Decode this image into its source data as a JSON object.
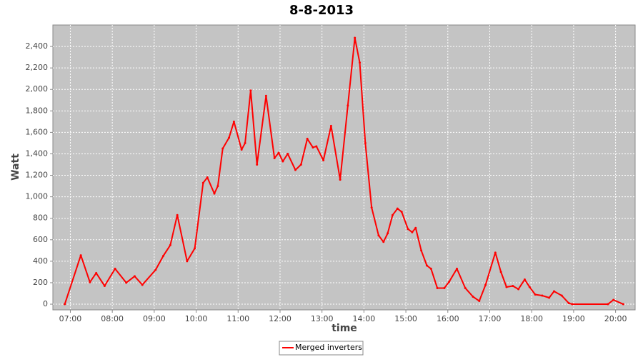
{
  "chart_data": {
    "type": "line",
    "title": "8-8-2013",
    "x_label": "time",
    "y_label": "Watt",
    "x": [
      "06:52",
      "07:15",
      "07:28",
      "07:37",
      "07:49",
      "08:04",
      "08:20",
      "08:32",
      "08:43",
      "09:02",
      "09:13",
      "09:23",
      "09:33",
      "09:47",
      "09:58",
      "10:10",
      "10:16",
      "10:26",
      "10:31",
      "10:38",
      "10:47",
      "10:54",
      "11:05",
      "11:10",
      "11:18",
      "11:27",
      "11:40",
      "11:52",
      "11:58",
      "12:04",
      "12:11",
      "12:22",
      "12:30",
      "12:39",
      "12:47",
      "12:52",
      "13:02",
      "13:13",
      "13:26",
      "13:37",
      "13:47",
      "13:54",
      "14:02",
      "14:11",
      "14:21",
      "14:28",
      "14:34",
      "14:41",
      "14:48",
      "14:54",
      "15:03",
      "15:09",
      "15:14",
      "15:22",
      "15:30",
      "15:36",
      "15:45",
      "15:55",
      "16:02",
      "16:13",
      "16:25",
      "16:36",
      "16:45",
      "16:54",
      "17:08",
      "17:16",
      "17:24",
      "17:33",
      "17:41",
      "17:50",
      "17:57",
      "18:05",
      "18:15",
      "18:25",
      "18:32",
      "18:43",
      "18:53",
      "18:58",
      "19:49",
      "19:57",
      "20:11"
    ],
    "series": [
      {
        "name": "Merged inverters",
        "color": "#ff0000",
        "values": [
          0,
          455,
          205,
          290,
          170,
          330,
          200,
          260,
          180,
          320,
          450,
          550,
          830,
          400,
          520,
          1130,
          1180,
          1030,
          1100,
          1450,
          1550,
          1700,
          1440,
          1500,
          1990,
          1300,
          1940,
          1360,
          1410,
          1330,
          1400,
          1250,
          1300,
          1540,
          1460,
          1470,
          1340,
          1660,
          1160,
          1850,
          2480,
          2250,
          1500,
          900,
          640,
          580,
          660,
          830,
          890,
          860,
          700,
          670,
          710,
          500,
          360,
          330,
          150,
          150,
          210,
          330,
          150,
          70,
          30,
          180,
          480,
          300,
          160,
          170,
          140,
          230,
          160,
          90,
          80,
          60,
          120,
          80,
          10,
          0,
          0,
          40,
          0
        ]
      }
    ],
    "xlim": [
      "06:35",
      "20:28"
    ],
    "xticks": [
      "07:00",
      "08:00",
      "09:00",
      "10:00",
      "11:00",
      "12:00",
      "13:00",
      "14:00",
      "15:00",
      "16:00",
      "17:00",
      "18:00",
      "19:00",
      "20:00"
    ],
    "ylim": [
      -53,
      2600
    ],
    "yticks": [
      0,
      200,
      400,
      600,
      800,
      {
        "value": 1000,
        "label": "1,000"
      },
      {
        "value": 1200,
        "label": "1,200"
      },
      {
        "value": 1400,
        "label": "1,400"
      },
      {
        "value": 1600,
        "label": "1,600"
      },
      {
        "value": 1800,
        "label": "1,800"
      },
      {
        "value": 2000,
        "label": "2,000"
      },
      {
        "value": 2200,
        "label": "2,200"
      },
      {
        "value": 2400,
        "label": "2,400"
      }
    ],
    "grid": true,
    "legend": "bottom"
  }
}
